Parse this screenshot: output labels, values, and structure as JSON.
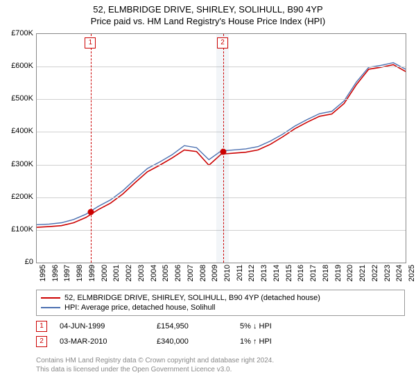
{
  "title": "52, ELMBRIDGE DRIVE, SHIRLEY, SOLIHULL, B90 4YP",
  "subtitle": "Price paid vs. HM Land Registry's House Price Index (HPI)",
  "chart": {
    "type": "line",
    "background_color": "#ffffff",
    "grid_color": "#d0d0d0",
    "border_color": "#888888",
    "ylim": [
      0,
      700000
    ],
    "ytick_step": 100000,
    "ylabels": [
      "£0",
      "£100K",
      "£200K",
      "£300K",
      "£400K",
      "£500K",
      "£600K",
      "£700K"
    ],
    "x_years": [
      1995,
      1996,
      1997,
      1998,
      1999,
      2000,
      2001,
      2002,
      2003,
      2004,
      2005,
      2006,
      2007,
      2008,
      2009,
      2010,
      2011,
      2012,
      2013,
      2014,
      2015,
      2016,
      2017,
      2018,
      2019,
      2020,
      2021,
      2022,
      2023,
      2024,
      2025
    ],
    "label_fontsize": 11,
    "series": [
      {
        "name": "52, ELMBRIDGE DRIVE, SHIRLEY, SOLIHULL, B90 4YP (detached house)",
        "color": "#cc0000",
        "line_width": 1.6,
        "values": [
          108000,
          110000,
          113000,
          122000,
          138000,
          162000,
          182000,
          210000,
          245000,
          278000,
          298000,
          320000,
          345000,
          340000,
          298000,
          332000,
          335000,
          338000,
          345000,
          362000,
          385000,
          410000,
          430000,
          448000,
          455000,
          487000,
          545000,
          592000,
          598000,
          606000,
          585000
        ]
      },
      {
        "name": "HPI: Average price, detached house, Solihull",
        "color": "#4a6fb0",
        "line_width": 1.4,
        "values": [
          116000,
          118000,
          122000,
          132000,
          148000,
          172000,
          192000,
          220000,
          255000,
          288000,
          308000,
          330000,
          358000,
          352000,
          315000,
          342000,
          345000,
          348000,
          355000,
          372000,
          393000,
          418000,
          438000,
          456000,
          463000,
          495000,
          553000,
          598000,
          604000,
          612000,
          592000
        ]
      }
    ],
    "sales": [
      {
        "marker": "1",
        "date_label": "04-JUN-1999",
        "price_label": "£154,950",
        "delta_label": "5% ↓ HPI",
        "x_year": 1999.42,
        "y_value": 154950
      },
      {
        "marker": "2",
        "date_label": "03-MAR-2010",
        "price_label": "£340,000",
        "delta_label": "1% ↑ HPI",
        "x_year": 2010.17,
        "y_value": 340000
      }
    ],
    "shade_band": {
      "from_year": 2009.6,
      "to_year": 2010.6,
      "color": "rgba(150,170,200,0.12)"
    }
  },
  "legend": {
    "border_color": "#999999"
  },
  "footer": {
    "line1": "Contains HM Land Registry data © Crown copyright and database right 2024.",
    "line2": "This data is licensed under the Open Government Licence v3.0."
  }
}
